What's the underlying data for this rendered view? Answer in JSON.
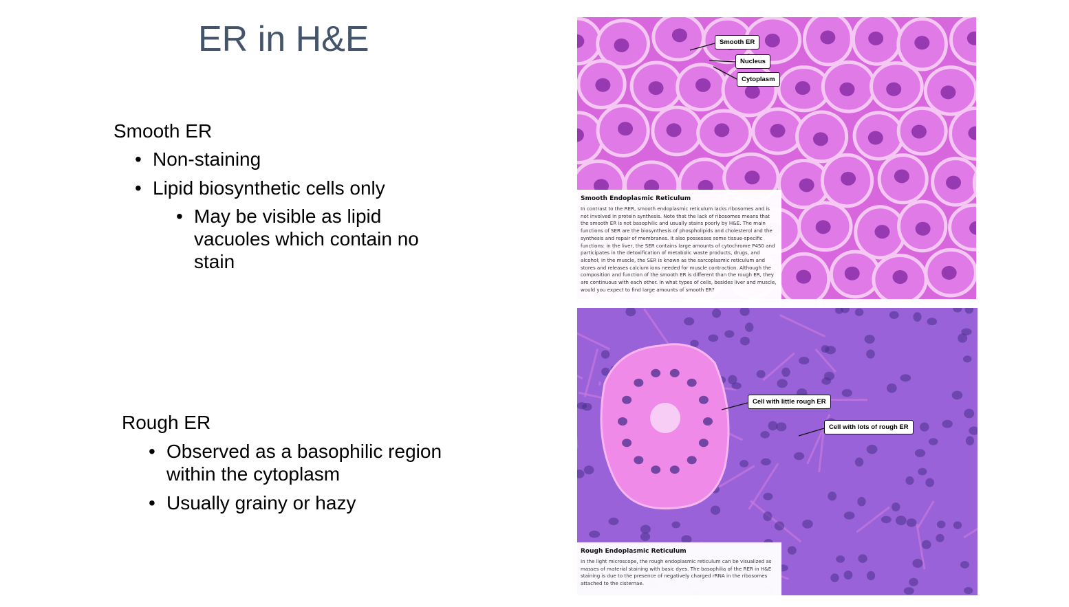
{
  "slide": {
    "title": "ER in H&E"
  },
  "smooth": {
    "heading": "Smooth ER",
    "bullets": [
      "Non-staining",
      "Lipid biosynthetic cells only"
    ],
    "sub_bullets": [
      "May be visible as lipid vacuoles which contain no stain"
    ]
  },
  "rough": {
    "heading": "Rough ER",
    "bullets": [
      "Observed as a basophilic region within the cytoplasm",
      "Usually grainy or hazy"
    ]
  },
  "image_smooth": {
    "labels": {
      "smooth_er": "Smooth ER",
      "nucleus": "Nucleus",
      "cytoplasm": "Cytoplasm"
    },
    "caption_title": "Smooth Endoplasmic Reticulum",
    "caption_body": "In contrast to the RER, smooth endoplasmic reticulum lacks ribosomes and is not involved in protein synthesis. Note that the lack of ribosomes means that the smooth ER is not basophilic and usually stains poorly by H&E. The main functions of SER are the biosynthesis of phospholipids and cholesterol and the synthesis and repair of membranes. It also possesses some tissue-specific functions: in the liver, the SER contains large amounts of cytochrome P450 and participates in the detoxification of metabolic waste products, drugs, and alcohol; in the muscle, the SER is known as the sarcoplasmic reticulum and stores and releases calcium ions needed for muscle contraction. Although the composition and function of the smooth ER is different than the rough ER, they are continuous with each other. In what types of cells, besides liver and muscle, would you expect to find large amounts of smooth ER?",
    "colors": {
      "cell": "#e07ae6",
      "membrane": "#f5c8f3",
      "nucleus": "#8a2fa8",
      "background": "#d866dd"
    }
  },
  "image_rough": {
    "labels": {
      "little_rough": "Cell with little rough ER",
      "lots_rough": "Cell with lots of rough ER"
    },
    "caption_title": "Rough Endoplasmic Reticulum",
    "caption_body": "In the light microscope, the rough endoplasmic reticulum can be visualized as masses of material staining with basic dyes. The basophilia of the RER in H&E staining is due to the presence of negatively charged rRNA in the ribosomes attached to the cisternae.",
    "colors": {
      "tissue": "#9a62d8",
      "light_cell": "#f08ae8",
      "nucleus": "#4b2f8e",
      "septa": "#c77ae0"
    }
  }
}
